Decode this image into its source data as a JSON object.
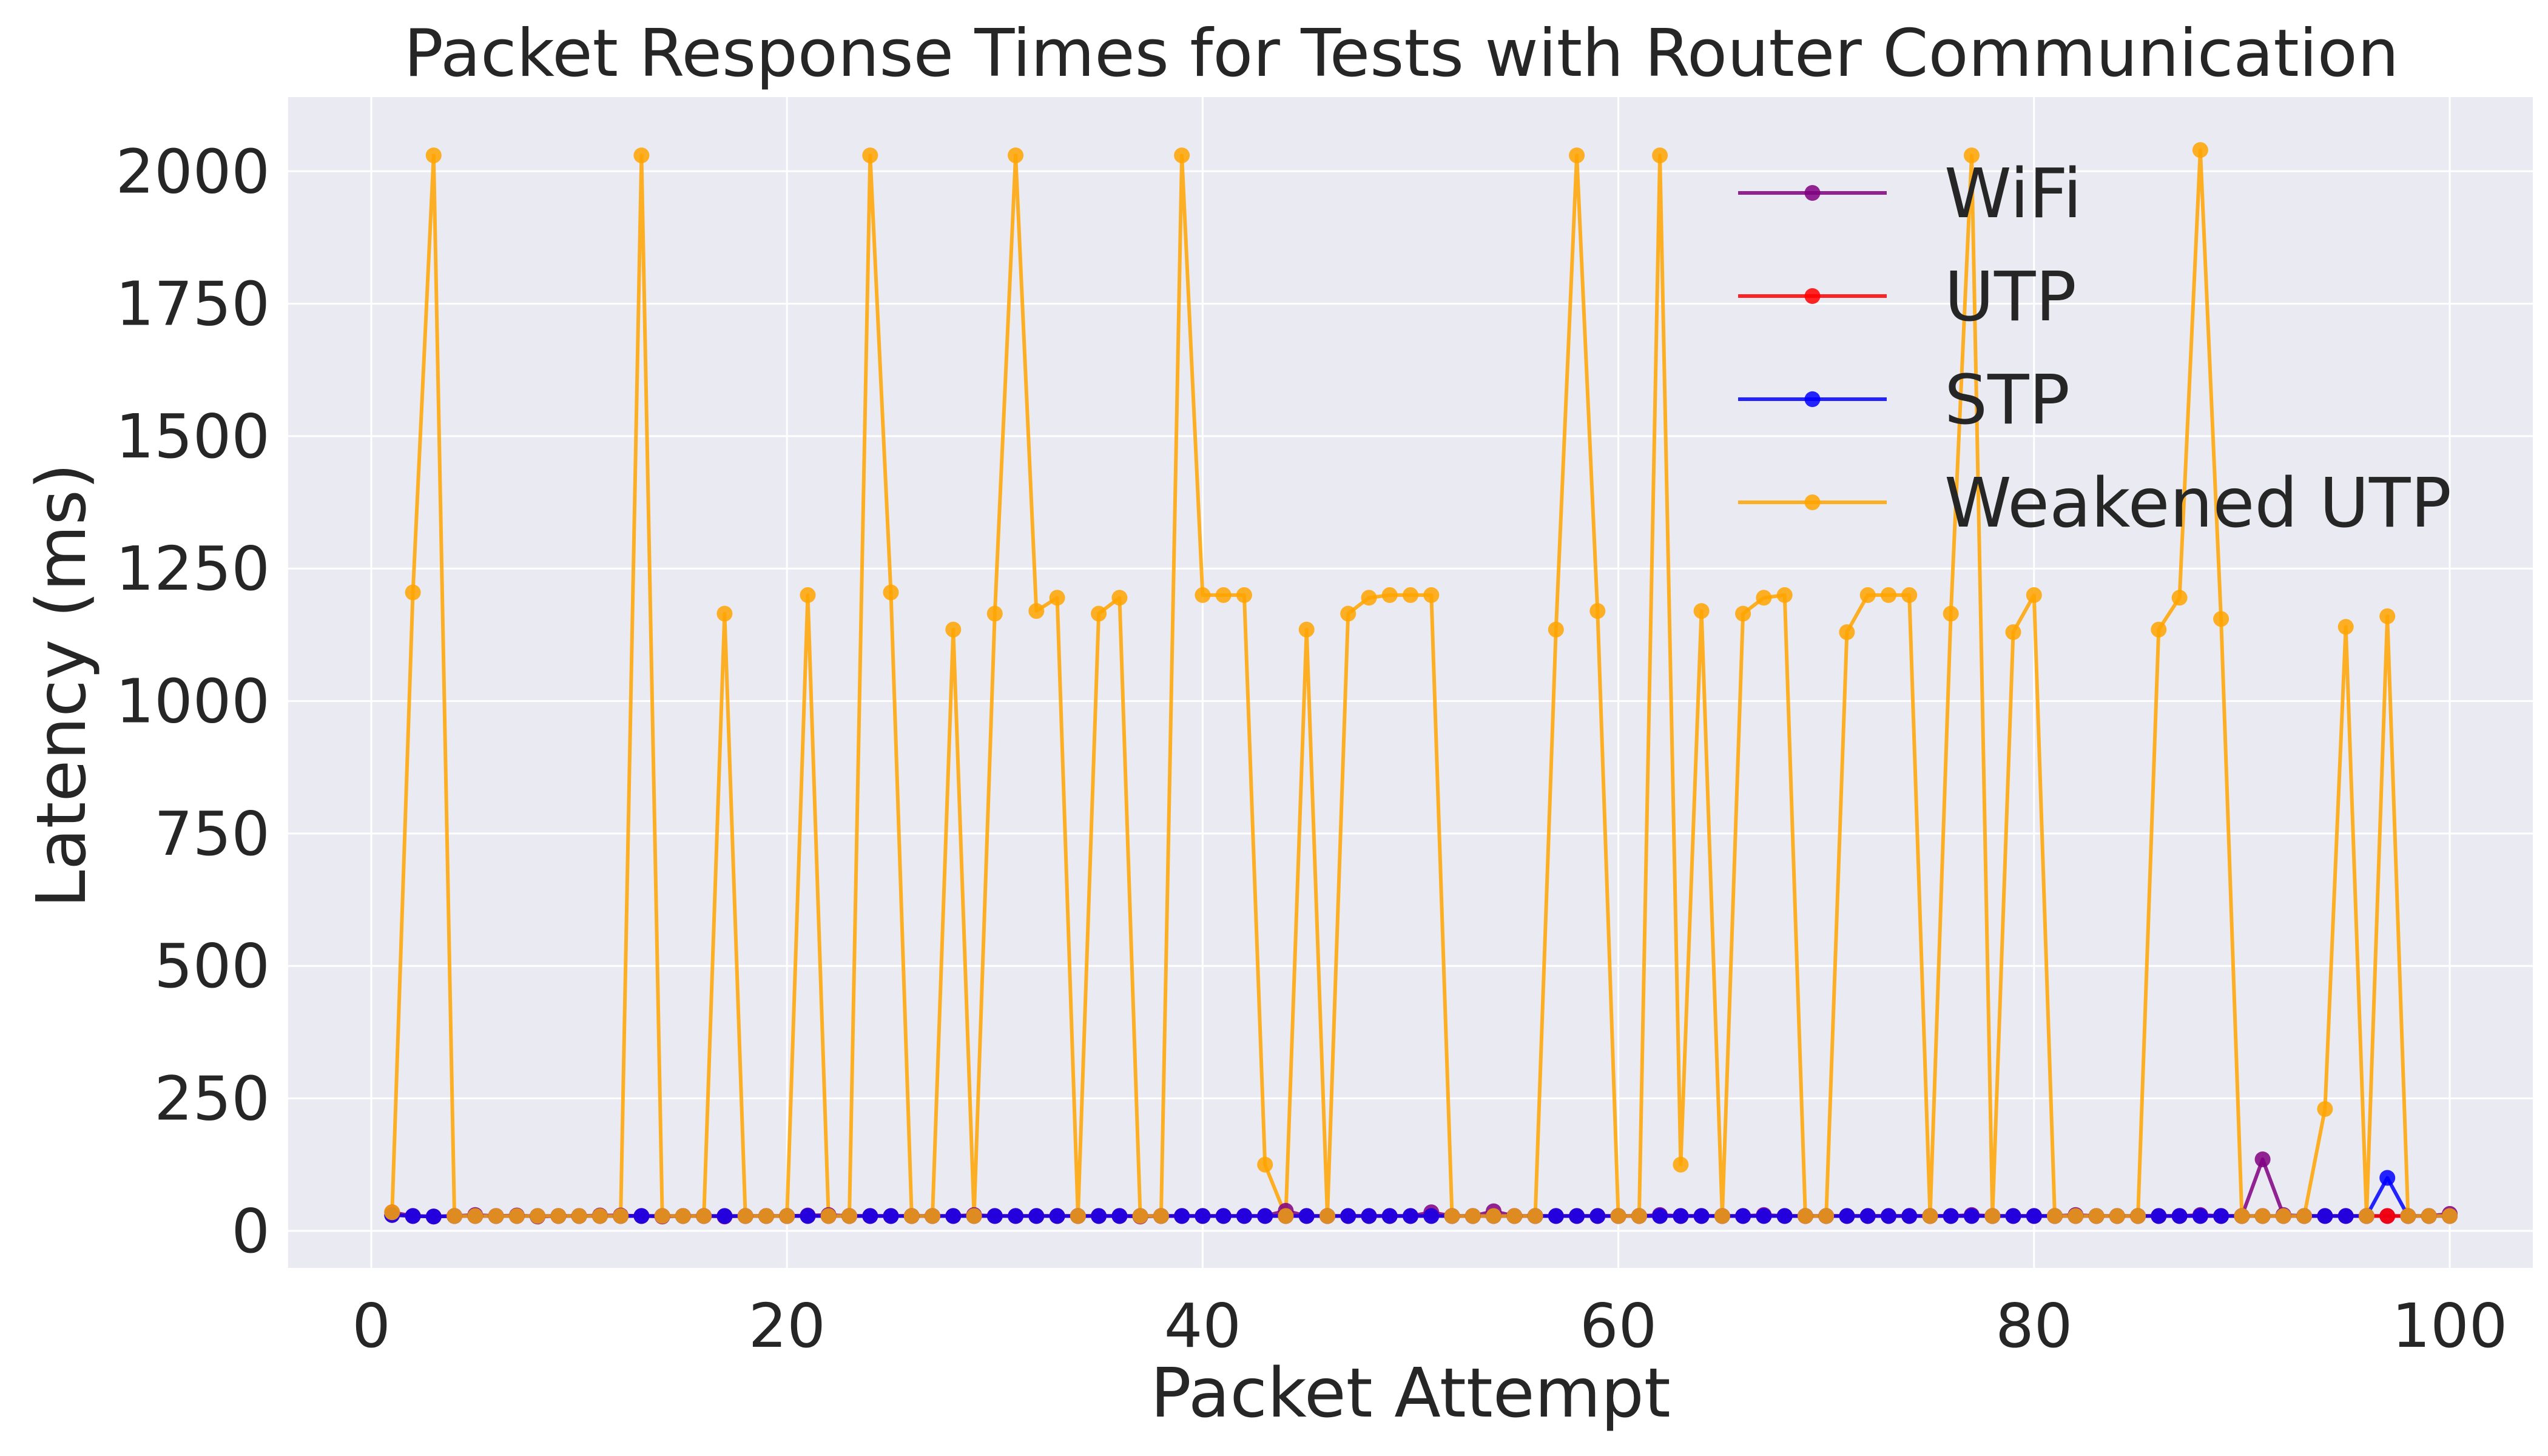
{
  "chart_data": {
    "type": "line",
    "title": "Packet Response Times for Tests with Router Communication",
    "xlabel": "Packet Attempt",
    "ylabel": "Latency (ms)",
    "xlim": [
      -4,
      104
    ],
    "ylim": [
      -70,
      2140
    ],
    "xticks": [
      0,
      20,
      40,
      60,
      80,
      100
    ],
    "yticks": [
      0,
      250,
      500,
      750,
      1000,
      1250,
      1500,
      1750,
      2000
    ],
    "grid": true,
    "legend_position": "top-right",
    "x": [
      1,
      2,
      3,
      4,
      5,
      6,
      7,
      8,
      9,
      10,
      11,
      12,
      13,
      14,
      15,
      16,
      17,
      18,
      19,
      20,
      21,
      22,
      23,
      24,
      25,
      26,
      27,
      28,
      29,
      30,
      31,
      32,
      33,
      34,
      35,
      36,
      37,
      38,
      39,
      40,
      41,
      42,
      43,
      44,
      45,
      46,
      47,
      48,
      49,
      50,
      51,
      52,
      53,
      54,
      55,
      56,
      57,
      58,
      59,
      60,
      61,
      62,
      63,
      64,
      65,
      66,
      67,
      68,
      69,
      70,
      71,
      72,
      73,
      74,
      75,
      76,
      77,
      78,
      79,
      80,
      81,
      82,
      83,
      84,
      85,
      86,
      87,
      88,
      89,
      90,
      91,
      92,
      93,
      94,
      95,
      96,
      97,
      98,
      99,
      100
    ],
    "series": [
      {
        "name": "WiFi",
        "color": "#800080",
        "values": [
          35,
          28,
          27,
          28,
          30,
          28,
          29,
          27,
          28,
          28,
          29,
          29,
          28,
          27,
          28,
          28,
          27,
          28,
          28,
          28,
          29,
          30,
          28,
          28,
          28,
          28,
          28,
          28,
          30,
          28,
          28,
          28,
          28,
          28,
          28,
          28,
          27,
          28,
          28,
          28,
          28,
          28,
          28,
          38,
          28,
          28,
          28,
          28,
          28,
          28,
          35,
          28,
          28,
          37,
          28,
          28,
          28,
          28,
          28,
          28,
          28,
          30,
          28,
          28,
          28,
          28,
          30,
          28,
          28,
          28,
          28,
          28,
          28,
          28,
          28,
          28,
          30,
          28,
          28,
          28,
          28,
          30,
          28,
          28,
          28,
          28,
          28,
          30,
          28,
          28,
          135,
          30,
          28,
          28,
          28,
          28,
          28,
          28,
          28,
          32
        ]
      },
      {
        "name": "UTP",
        "color": "#ff0000",
        "values": [
          30,
          28,
          27,
          28,
          28,
          28,
          28,
          28,
          28,
          28,
          28,
          28,
          28,
          28,
          28,
          28,
          28,
          28,
          28,
          28,
          28,
          28,
          28,
          28,
          28,
          28,
          28,
          28,
          28,
          28,
          28,
          28,
          28,
          28,
          28,
          28,
          28,
          28,
          28,
          28,
          28,
          28,
          28,
          28,
          28,
          28,
          28,
          28,
          28,
          28,
          28,
          28,
          28,
          28,
          28,
          28,
          28,
          28,
          28,
          28,
          28,
          28,
          28,
          28,
          28,
          28,
          28,
          28,
          28,
          28,
          28,
          28,
          28,
          28,
          28,
          28,
          28,
          28,
          28,
          28,
          28,
          28,
          28,
          28,
          28,
          28,
          28,
          28,
          28,
          28,
          28,
          28,
          28,
          28,
          28,
          28,
          28,
          28,
          28,
          28
        ]
      },
      {
        "name": "STP",
        "color": "#0000ff",
        "values": [
          30,
          28,
          27,
          28,
          28,
          28,
          28,
          28,
          28,
          28,
          28,
          28,
          28,
          28,
          28,
          28,
          28,
          28,
          28,
          28,
          28,
          28,
          28,
          28,
          28,
          28,
          28,
          28,
          28,
          28,
          28,
          28,
          28,
          28,
          28,
          28,
          28,
          28,
          28,
          28,
          28,
          28,
          28,
          28,
          28,
          28,
          28,
          28,
          28,
          28,
          28,
          28,
          28,
          28,
          28,
          28,
          28,
          28,
          28,
          28,
          28,
          28,
          28,
          28,
          28,
          28,
          28,
          28,
          28,
          28,
          28,
          28,
          28,
          28,
          28,
          28,
          28,
          28,
          28,
          28,
          28,
          28,
          28,
          28,
          28,
          28,
          28,
          28,
          28,
          28,
          28,
          28,
          28,
          28,
          28,
          28,
          100,
          28,
          28,
          28
        ]
      },
      {
        "name": "Weakened UTP",
        "color": "#ffa500",
        "values": [
          35,
          1205,
          2030,
          28,
          28,
          28,
          28,
          28,
          28,
          28,
          28,
          28,
          2030,
          28,
          28,
          28,
          1165,
          28,
          28,
          28,
          1200,
          28,
          28,
          2030,
          1205,
          28,
          28,
          1135,
          28,
          1165,
          2030,
          1170,
          1195,
          28,
          1165,
          1195,
          28,
          28,
          2030,
          1200,
          1200,
          1200,
          125,
          28,
          1135,
          28,
          1165,
          1195,
          1200,
          1200,
          1200,
          28,
          28,
          28,
          28,
          28,
          1135,
          2030,
          1170,
          28,
          28,
          2030,
          125,
          1170,
          28,
          1165,
          1195,
          1200,
          28,
          28,
          1130,
          1200,
          1200,
          1200,
          28,
          1165,
          2030,
          28,
          1130,
          1200,
          28,
          28,
          28,
          28,
          28,
          1135,
          1195,
          2040,
          1155,
          28,
          28,
          28,
          28,
          230,
          1140,
          28,
          1160,
          28,
          28,
          28
        ]
      }
    ]
  }
}
